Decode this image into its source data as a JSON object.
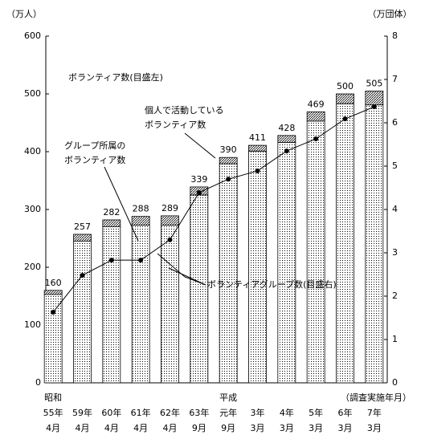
{
  "chart_data": {
    "type": "bar",
    "ylabel": "（万人）",
    "y2label": "（万団体）",
    "xlabel": "（調査実施年月）",
    "total_note": "ボランティア数(目盛左)",
    "categories": [
      [
        "昭和",
        "55年",
        "4月"
      ],
      [
        "59年",
        "4月"
      ],
      [
        "60年",
        "4月"
      ],
      [
        "61年",
        "4月"
      ],
      [
        "62年",
        "4月"
      ],
      [
        "63年",
        "9月"
      ],
      [
        "平成",
        "元年",
        "9月"
      ],
      [
        "3年",
        "3月"
      ],
      [
        "4年",
        "3月"
      ],
      [
        "5年",
        "3月"
      ],
      [
        "6年",
        "3月"
      ],
      [
        "7年",
        "3月"
      ]
    ],
    "totals": [
      160,
      257,
      282,
      288,
      289,
      339,
      390,
      411,
      428,
      469,
      500,
      505
    ],
    "series": [
      {
        "name": [
          "グループ所属の",
          "ボランティア数"
        ],
        "color": "#ffffff",
        "pattern": "dots",
        "values": [
          153,
          245,
          270,
          273,
          273,
          325,
          379,
          401,
          416,
          453,
          483,
          481
        ]
      },
      {
        "name": [
          "個人で活動している",
          "ボランティア数"
        ],
        "color": "#ffffff",
        "pattern": "hatch",
        "values": [
          7,
          12,
          12,
          15,
          16,
          14,
          11,
          10,
          12,
          16,
          17,
          24
        ]
      },
      {
        "name": "ボランティアグループ数(目盛右)",
        "color": "#000000",
        "type": "line",
        "axis": "y2",
        "values": [
          1.63,
          2.48,
          2.83,
          2.83,
          3.3,
          4.39,
          4.7,
          4.89,
          5.35,
          5.63,
          6.09,
          6.37
        ]
      }
    ],
    "ylim": [
      0,
      600
    ],
    "yticks": [
      0,
      100,
      200,
      300,
      400,
      500,
      600
    ],
    "y2lim": [
      0,
      8
    ],
    "y2ticks": [
      0,
      1,
      2,
      3,
      4,
      5,
      6,
      7,
      8
    ]
  }
}
